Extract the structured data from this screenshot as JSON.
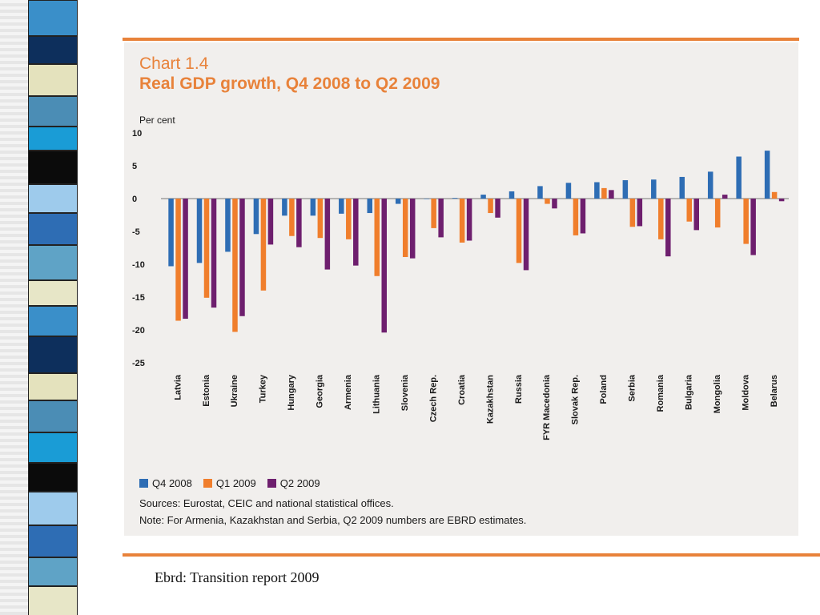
{
  "chart_data": {
    "type": "bar",
    "number": "Chart 1.4",
    "title": "Real GDP growth, Q4 2008 to Q2 2009",
    "ylabel": "Per cent",
    "ylim": [
      -25,
      10
    ],
    "yticks": [
      10,
      5,
      0,
      -5,
      -10,
      -15,
      -20,
      -25
    ],
    "categories": [
      "Latvia",
      "Estonia",
      "Ukraine",
      "Turkey",
      "Hungary",
      "Georgia",
      "Armenia",
      "Lithuania",
      "Slovenia",
      "Czech Rep.",
      "Croatia",
      "Kazakhstan",
      "Russia",
      "FYR Macedonia",
      "Slovak Rep.",
      "Poland",
      "Serbia",
      "Romania",
      "Bulgaria",
      "Mongolia",
      "Moldova",
      "Belarus"
    ],
    "series": [
      {
        "name": "Q4 2008",
        "color": "#2e6db4",
        "values": [
          -10.3,
          -9.8,
          -8.1,
          -5.4,
          -2.6,
          -2.6,
          -2.3,
          -2.2,
          -0.8,
          0,
          0.1,
          0.6,
          1.1,
          1.9,
          2.4,
          2.5,
          2.8,
          2.9,
          3.3,
          4.1,
          6.4,
          7.3
        ]
      },
      {
        "name": "Q1 2009",
        "color": "#f07e2c",
        "values": [
          -18.6,
          -15.1,
          -20.3,
          -14.0,
          -5.7,
          -6.0,
          -6.2,
          -11.8,
          -8.9,
          -4.5,
          -6.7,
          -2.2,
          -9.8,
          -0.8,
          -5.6,
          1.6,
          -4.3,
          -6.2,
          -3.5,
          -4.4,
          -6.9,
          1.0
        ]
      },
      {
        "name": "Q2 2009",
        "color": "#6e1f6e",
        "values": [
          -18.3,
          -16.6,
          -17.9,
          -7.0,
          -7.4,
          -10.8,
          -10.2,
          -20.4,
          -9.1,
          -5.9,
          -6.4,
          -2.9,
          -10.9,
          -1.5,
          -5.3,
          1.3,
          -4.2,
          -8.8,
          -4.8,
          0.6,
          -8.6,
          -0.4
        ]
      }
    ]
  },
  "footer": {
    "sources": "Sources: Eurostat, CEIC and national statistical offices.",
    "note": "Note: For Armenia, Kazakhstan and Serbia, Q2 2009 numbers are EBRD estimates."
  },
  "caption": "Ebrd:  Transition report 2009",
  "colors": {
    "accent": "#e8823a",
    "panel": "#f1efed"
  }
}
